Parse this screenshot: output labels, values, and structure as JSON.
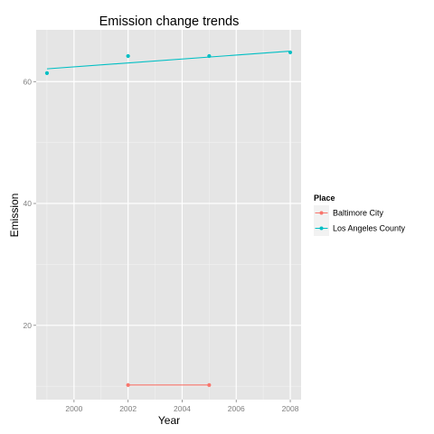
{
  "chart_data": {
    "type": "line",
    "title": "Emission change trends",
    "xlabel": "Year",
    "ylabel": "Emission",
    "xlim": [
      1998.6,
      2008.4
    ],
    "ylim": [
      7.8,
      68.5
    ],
    "x_ticks": [
      2000,
      2002,
      2004,
      2006,
      2008
    ],
    "y_ticks": [
      20,
      40,
      60
    ],
    "grid": true,
    "legend": {
      "title": "Place",
      "placement": "right",
      "entries": [
        "Baltimore City",
        "Los Angeles County"
      ]
    },
    "series": [
      {
        "name": "Baltimore City",
        "color": "#f8766d",
        "x": [
          2002,
          2005
        ],
        "y": [
          10.2,
          10.2
        ],
        "trend": [
          [
            2002,
            10.2
          ],
          [
            2005,
            10.2
          ]
        ]
      },
      {
        "name": "Los Angeles County",
        "color": "#00bfc4",
        "x": [
          1999,
          2002,
          2005,
          2008
        ],
        "y": [
          61.4,
          64.2,
          64.2,
          64.8
        ],
        "trend": [
          [
            1999,
            62.1
          ],
          [
            2008,
            65.0
          ]
        ]
      }
    ]
  }
}
